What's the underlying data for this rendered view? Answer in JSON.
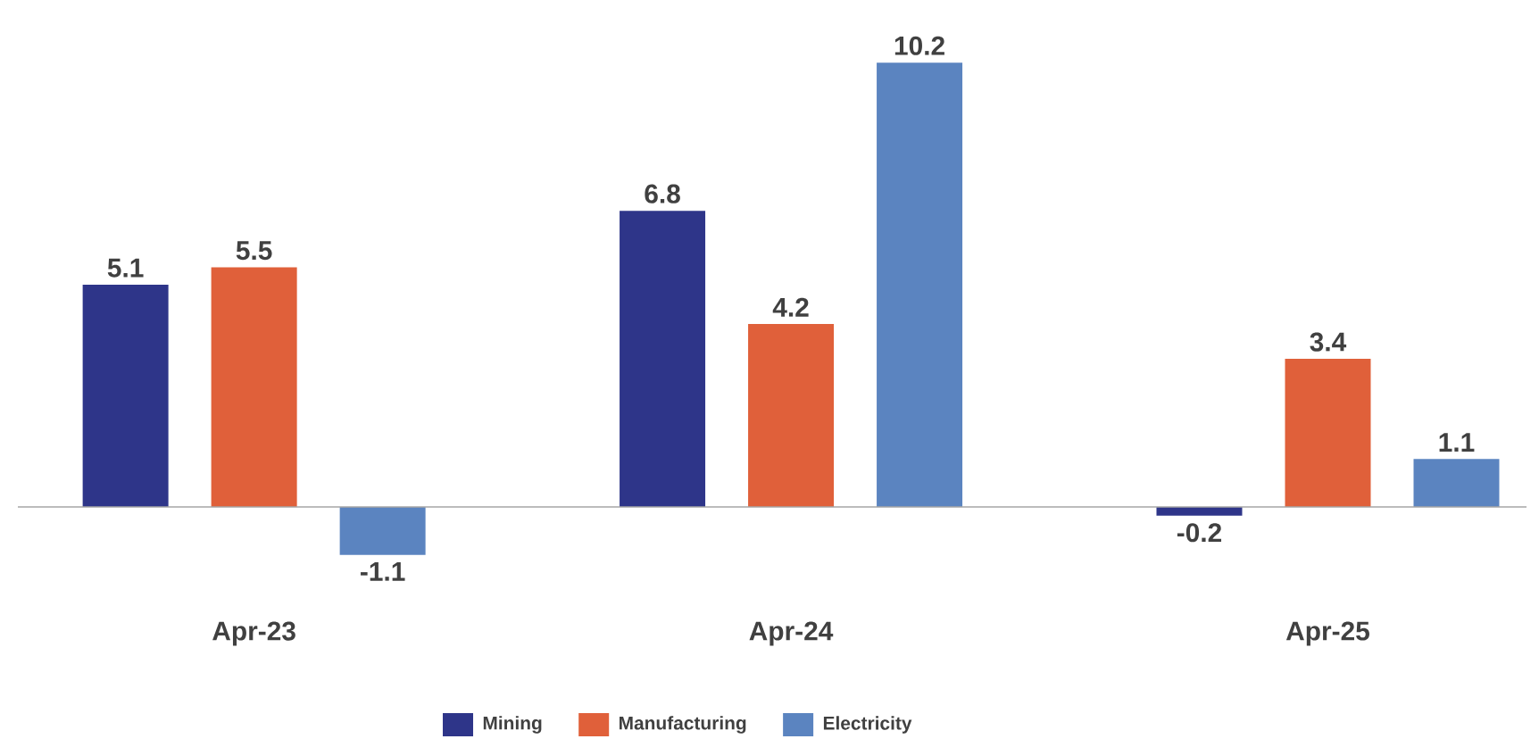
{
  "chart_data": {
    "type": "bar",
    "categories": [
      "Apr-23",
      "Apr-24",
      "Apr-25"
    ],
    "series": [
      {
        "name": "Mining",
        "color": "#2e3589",
        "values": [
          5.1,
          6.8,
          -0.2
        ]
      },
      {
        "name": "Manufacturing",
        "color": "#e0603a",
        "values": [
          5.5,
          4.2,
          3.4
        ]
      },
      {
        "name": "Electricity",
        "color": "#5b84c0",
        "values": [
          -1.1,
          10.2,
          1.1
        ]
      }
    ],
    "data_labels": true,
    "legend": "bottom"
  }
}
